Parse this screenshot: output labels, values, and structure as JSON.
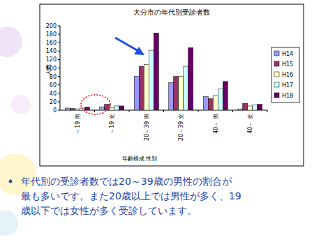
{
  "chart_data": {
    "type": "bar",
    "title": "大分市の年代別受診者数",
    "y_label": "人数",
    "x_label": "年齢構成  性別",
    "categories": [
      "～19 男",
      "～19 女",
      "20～39 男",
      "20～39 女",
      "40～ 男",
      "40～ 女"
    ],
    "series": [
      {
        "name": "H14",
        "color": "#9999ff",
        "values": [
          5,
          8,
          80,
          65,
          32,
          3
        ]
      },
      {
        "name": "H15",
        "color": "#993366",
        "values": [
          4,
          14,
          104,
          80,
          27,
          16
        ]
      },
      {
        "name": "H16",
        "color": "#ffffcc",
        "values": [
          3,
          6,
          108,
          80,
          35,
          10
        ]
      },
      {
        "name": "H17",
        "color": "#ccffff",
        "values": [
          5,
          10,
          142,
          104,
          50,
          12
        ]
      },
      {
        "name": "H18",
        "color": "#660066",
        "values": [
          7,
          10,
          183,
          148,
          68,
          14
        ]
      }
    ],
    "ylim": [
      0,
      200
    ],
    "yticks": [
      0,
      20,
      40,
      60,
      80,
      100,
      120,
      140,
      160,
      180,
      200
    ],
    "grid": false,
    "legend": "right"
  },
  "caption": [
    "年代別の受診者数では20～39歳の男性の割合が",
    "最も多いです。また20歳以上では男性が多く、19",
    "歳以下では女性が多く受診しています。"
  ]
}
